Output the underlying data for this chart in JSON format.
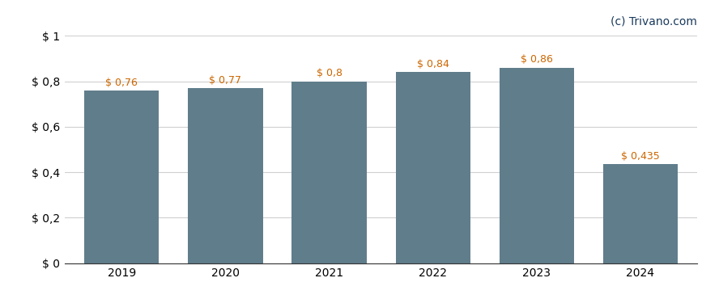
{
  "categories": [
    "2019",
    "2020",
    "2021",
    "2022",
    "2023",
    "2024"
  ],
  "values": [
    0.76,
    0.77,
    0.8,
    0.84,
    0.86,
    0.435
  ],
  "labels": [
    "$ 0,76",
    "$ 0,77",
    "$ 0,8",
    "$ 0,84",
    "$ 0,86",
    "$ 0,435"
  ],
  "bar_color": "#607d8b",
  "background_color": "#ffffff",
  "ylim": [
    0,
    1.0
  ],
  "yticks": [
    0,
    0.2,
    0.4,
    0.6,
    0.8,
    1.0
  ],
  "ytick_labels": [
    "$ 0",
    "$ 0,2",
    "$ 0,4",
    "$ 0,6",
    "$ 0,8",
    "$ 1"
  ],
  "watermark": "(c) Trivano.com",
  "watermark_color": "#1a3a5c",
  "grid_color": "#d0d0d0",
  "label_color": "#cc6600",
  "label_fontsize": 9,
  "tick_fontsize": 10,
  "watermark_fontsize": 10,
  "bar_width": 0.72
}
